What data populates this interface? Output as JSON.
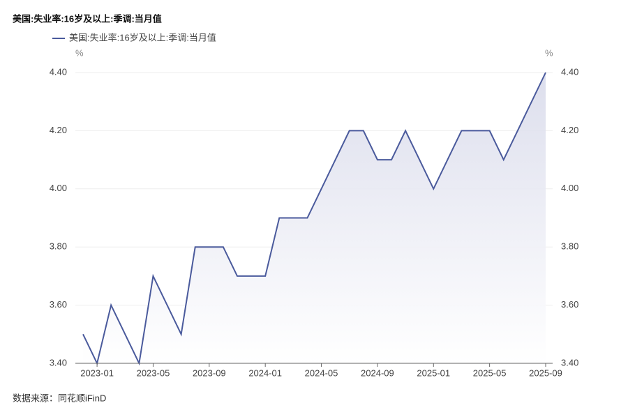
{
  "chart_data": {
    "type": "line",
    "title": "美国:失业率:16岁及以上:季调:当月值",
    "y_unit": "%",
    "y2_unit": "%",
    "source": "数据来源：同花顺iFinD",
    "categories": [
      null,
      "2023-01",
      null,
      null,
      null,
      "2023-05",
      null,
      null,
      null,
      "2023-09",
      null,
      null,
      null,
      "2024-01",
      null,
      null,
      null,
      "2024-05",
      null,
      null,
      null,
      "2024-09",
      null,
      null,
      null,
      "2025-01",
      null,
      null,
      null,
      "2025-05",
      null,
      null,
      null,
      "2025-09"
    ],
    "series": [
      {
        "name": "美国:失业率:16岁及以上:季调:当月值",
        "color": "#4a5a9c",
        "values": [
          3.5,
          3.4,
          3.6,
          3.5,
          3.4,
          3.7,
          3.6,
          3.5,
          3.8,
          3.8,
          3.8,
          3.7,
          3.7,
          3.7,
          3.9,
          3.9,
          3.9,
          4.0,
          4.1,
          4.2,
          4.2,
          4.1,
          4.1,
          4.2,
          4.1,
          4.0,
          4.1,
          4.2,
          4.2,
          4.2,
          4.1,
          4.2,
          4.3,
          4.4
        ]
      }
    ],
    "ylim": [
      3.4,
      4.4
    ],
    "yticks": [
      {
        "value": 3.4,
        "label": "3.40"
      },
      {
        "value": 3.6,
        "label": "3.60"
      },
      {
        "value": 3.8,
        "label": "3.80"
      },
      {
        "value": 4.0,
        "label": "4.00"
      },
      {
        "value": 4.2,
        "label": "4.20"
      },
      {
        "value": 4.4,
        "label": "4.40"
      }
    ],
    "y2lim": [
      3.4,
      4.4
    ],
    "y2ticks": [
      {
        "value": 3.4,
        "label": "3.40"
      },
      {
        "value": 3.6,
        "label": "3.60"
      },
      {
        "value": 3.8,
        "label": "3.80"
      },
      {
        "value": 4.0,
        "label": "4.00"
      },
      {
        "value": 4.2,
        "label": "4.20"
      },
      {
        "value": 4.4,
        "label": "4.40"
      }
    ],
    "grid": true,
    "area_fill": true
  }
}
